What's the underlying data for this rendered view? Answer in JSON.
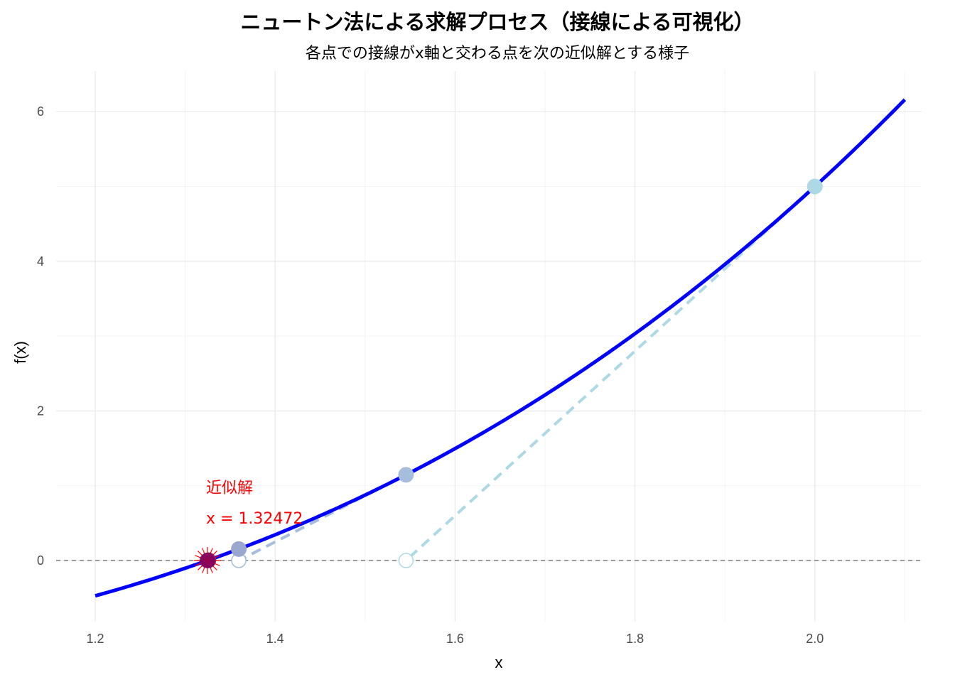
{
  "chart_data": {
    "type": "line",
    "title": "ニュートン法による求解プロセス（接線による可視化）",
    "subtitle": "各点での接線がx軸と交わる点を次の近似解とする様子",
    "xlabel": "x",
    "ylabel": "f(x)",
    "xlim": [
      1.2,
      2.1
    ],
    "ylim": [
      -0.46,
      6.15
    ],
    "x_ticks": [
      "1.2",
      "1.4",
      "1.6",
      "1.8",
      "2.0"
    ],
    "y_ticks": [
      "0",
      "2",
      "4",
      "6"
    ],
    "x_tick_values": [
      1.2,
      1.4,
      1.6,
      1.8,
      2.0
    ],
    "y_tick_values": [
      0,
      2,
      4,
      6
    ],
    "function": "x^3 - x - 1",
    "curve_color": "#0000ff",
    "zero_line": {
      "y": 0,
      "style": "dashed",
      "color": "#808080"
    },
    "iterations": [
      {
        "x": 2.0,
        "y": 5.0,
        "next_x": 1.5455,
        "color": "#add8e6"
      },
      {
        "x": 1.5455,
        "y": 1.1458,
        "next_x": 1.3596,
        "color": "#a6bedb"
      },
      {
        "x": 1.3596,
        "y": 0.1537,
        "next_x": 1.3258,
        "color": "#9aa8cf"
      },
      {
        "x": 1.3258,
        "y": 0.0046,
        "next_x": 1.3247,
        "color": "#7b2a7e"
      }
    ],
    "tangent_color": "#add8e6",
    "root": {
      "x": 1.32472,
      "y": 0,
      "color": "#ff0000",
      "point_color": "#800060"
    },
    "annotation": {
      "line1": "近似解",
      "line2": "x = 1.32472",
      "x": 1.32472,
      "y": 0.85,
      "color": "#ff0000"
    },
    "grid": true,
    "legend": "none"
  }
}
